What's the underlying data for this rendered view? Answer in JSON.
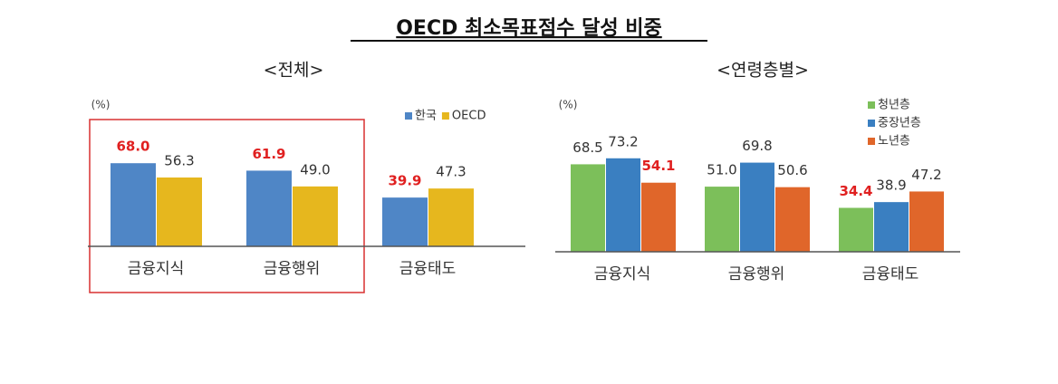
{
  "title": "OECD 최소목표점수 달성 비중",
  "chart_data": [
    {
      "type": "bar",
      "title": "<전체>",
      "ylabel": "(%)",
      "categories": [
        "금융지식",
        "금융행위",
        "금융태도"
      ],
      "series": [
        {
          "name": "한국",
          "color": "#4f86c6",
          "values": [
            68.0,
            61.9,
            39.9
          ],
          "value_labels": [
            "68.0",
            "61.9",
            "39.9"
          ],
          "label_colors": [
            "#e02020",
            "#e02020",
            "#e02020"
          ]
        },
        {
          "name": "OECD",
          "color": "#e6b71e",
          "values": [
            56.3,
            49.0,
            47.3
          ],
          "value_labels": [
            "56.3",
            "49.0",
            "47.3"
          ],
          "label_colors": [
            "#333333",
            "#333333",
            "#333333"
          ]
        }
      ],
      "ylim": [
        0,
        100
      ],
      "legend": "upper right",
      "legend_layout": "horizontal"
    },
    {
      "type": "bar",
      "title": "<연령층별>",
      "ylabel": "(%)",
      "categories": [
        "금융지식",
        "금융행위",
        "금융태도"
      ],
      "series": [
        {
          "name": "청년층",
          "color": "#7cbf5a",
          "values": [
            68.5,
            51.0,
            34.4
          ],
          "value_labels": [
            "68.5",
            "51.0",
            "34.4"
          ],
          "label_colors": [
            "#333333",
            "#333333",
            "#e02020"
          ]
        },
        {
          "name": "중장년층",
          "color": "#3a7fc1",
          "values": [
            73.2,
            69.8,
            38.9
          ],
          "value_labels": [
            "73.2",
            "69.8",
            "38.9"
          ],
          "label_colors": [
            "#333333",
            "#333333",
            "#333333"
          ]
        },
        {
          "name": "노년층",
          "color": "#e0662a",
          "values": [
            54.1,
            50.6,
            47.2
          ],
          "value_labels": [
            "54.1",
            "50.6",
            "47.2"
          ],
          "label_colors": [
            "#e02020",
            "#333333",
            "#333333"
          ]
        }
      ],
      "ylim": [
        0,
        100
      ],
      "legend": "upper right",
      "legend_layout": "vertical"
    }
  ]
}
